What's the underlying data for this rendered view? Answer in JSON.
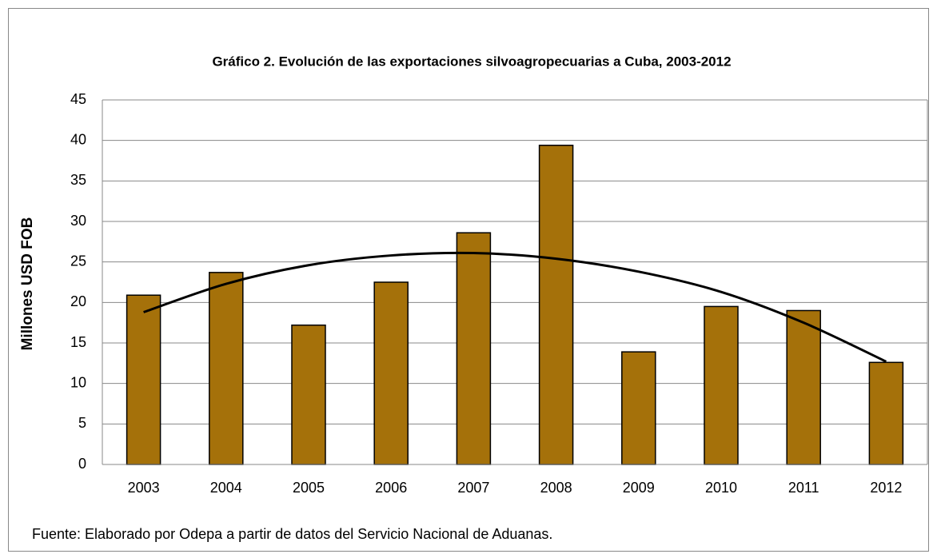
{
  "chart_data": {
    "type": "bar",
    "title": "Gráfico 2. Evolución de las exportaciones silvoagropecuarias a Cuba, 2003-2012",
    "y_label": "Millones USD FOB",
    "categories": [
      "2003",
      "2004",
      "2005",
      "2006",
      "2007",
      "2008",
      "2009",
      "2010",
      "2011",
      "2012"
    ],
    "series": [
      {
        "color": "#a5710a",
        "values": [
          20.9,
          23.7,
          17.2,
          22.5,
          28.6,
          39.4,
          13.9,
          19.5,
          19.0,
          12.6
        ]
      },
      {
        "color": "#000000",
        "style": "trendline",
        "values": [
          18.8,
          22.3,
          24.6,
          25.8,
          26.1,
          25.4,
          23.8,
          21.3,
          17.5,
          12.7
        ]
      }
    ],
    "ylim": [
      0,
      45
    ],
    "yticks": [
      0,
      5,
      10,
      15,
      20,
      25,
      30,
      35,
      40,
      45
    ],
    "grid": true,
    "source": "Fuente: Elaborado por Odepa a partir de datos del Servicio Nacional de Aduanas."
  }
}
